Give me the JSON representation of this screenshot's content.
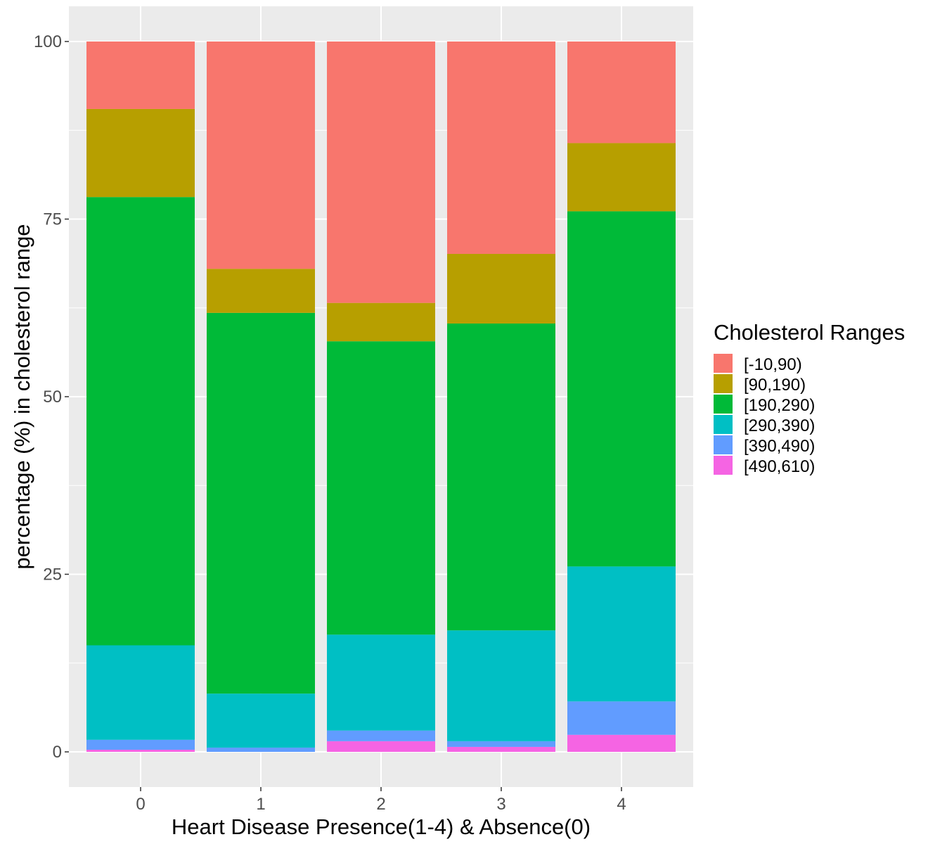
{
  "chart_data": {
    "type": "bar",
    "stacked": true,
    "xlabel": "Heart Disease Presence(1-4) & Absence(0)",
    "ylabel": "percentage (%) in cholesterol range",
    "ylim": [
      0,
      100
    ],
    "yticks": [
      "0",
      "25",
      "50",
      "75",
      "100"
    ],
    "categories": [
      "0",
      "1",
      "2",
      "3",
      "4"
    ],
    "grid": true,
    "legend": {
      "title": "Cholesterol Ranges",
      "position": "right"
    },
    "series": [
      {
        "name": "[490,610)",
        "color": "#F564E3",
        "values": [
          0.3,
          0.0,
          1.5,
          0.7,
          2.4
        ]
      },
      {
        "name": "[390,490)",
        "color": "#619CFF",
        "values": [
          1.4,
          0.6,
          1.5,
          0.8,
          4.7
        ]
      },
      {
        "name": "[290,390)",
        "color": "#00BFC4",
        "values": [
          13.3,
          7.6,
          13.5,
          15.6,
          19.0
        ]
      },
      {
        "name": "[190,290)",
        "color": "#00BA38",
        "values": [
          63.1,
          53.6,
          41.3,
          43.2,
          50.0
        ]
      },
      {
        "name": "[90,190)",
        "color": "#B79F00",
        "values": [
          12.4,
          6.2,
          5.4,
          9.8,
          9.6
        ]
      },
      {
        "name": "[-10,90)",
        "color": "#F8766D",
        "values": [
          9.5,
          32.0,
          36.8,
          29.9,
          14.3
        ]
      }
    ],
    "legend_order": [
      "[-10,90)",
      "[90,190)",
      "[190,290)",
      "[290,390)",
      "[390,490)",
      "[490,610)"
    ]
  }
}
